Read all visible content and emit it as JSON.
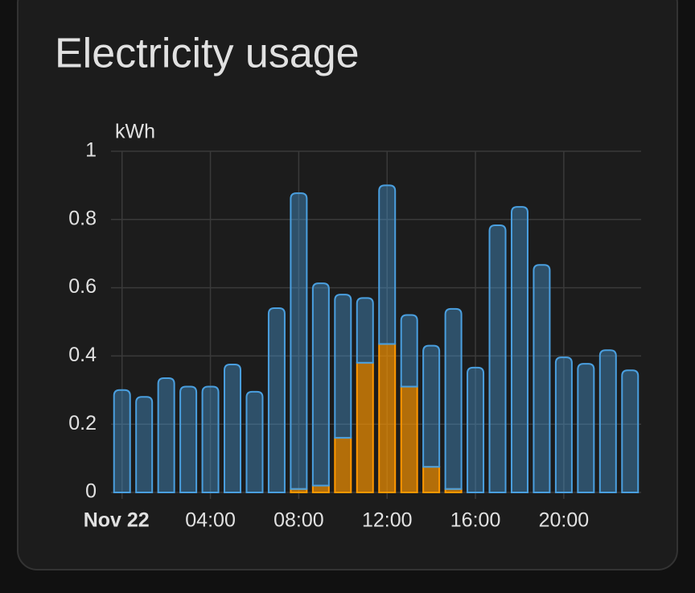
{
  "chart_data": {
    "type": "stacked-bar",
    "title": "Electricity usage",
    "y_label": "kWh",
    "categories": [
      {
        "value": 0,
        "label": "Nov 22"
      },
      null,
      null,
      null,
      "04:00",
      null,
      null,
      null,
      "08:00",
      null,
      null,
      null,
      "12:00",
      null,
      null,
      null,
      "16:00",
      null,
      null,
      null,
      "20:00",
      null,
      null,
      null
    ],
    "series": [
      {
        "color": "#ff9800",
        "values": [
          0,
          0,
          0,
          0,
          0,
          0,
          0,
          0,
          0.01,
          0.02,
          0.16,
          0.38,
          0.435,
          0.31,
          0.075,
          0.01,
          0,
          0,
          0,
          0,
          0,
          0,
          0,
          0
        ]
      },
      {
        "color": "#4a9fdf",
        "values": [
          0.3,
          0.28,
          0.335,
          0.31,
          0.31,
          0.375,
          0.295,
          0.54,
          0.867,
          0.593,
          0.42,
          0.19,
          0.465,
          0.21,
          0.355,
          0.528,
          0.366,
          0.783,
          0.837,
          0.667,
          0.396,
          0.377,
          0.417,
          0.358
        ]
      }
    ],
    "ylim": [
      0,
      1
    ],
    "yticks": [
      0,
      0.2,
      0.4,
      0.6,
      0.8,
      1
    ],
    "grid": true
  }
}
